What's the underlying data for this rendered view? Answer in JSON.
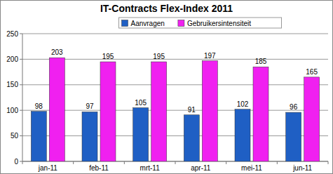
{
  "chart_data": {
    "type": "bar",
    "title": "IT-Contracts Flex-Index 2011",
    "categories": [
      "jan-11",
      "feb-11",
      "mrt-11",
      "apr-11",
      "mei-11",
      "jun-11"
    ],
    "series": [
      {
        "name": "Aanvragen",
        "color": "#1f5fc4",
        "values": [
          98,
          97,
          105,
          91,
          102,
          96
        ]
      },
      {
        "name": "Gebruikersintensiteit",
        "color": "#f020f0",
        "values": [
          203,
          195,
          195,
          197,
          185,
          165
        ]
      }
    ],
    "ylim": [
      0,
      250
    ],
    "yticks": [
      0,
      50,
      100,
      150,
      200,
      250
    ],
    "grid": true,
    "legend": "top",
    "data_labels": true
  }
}
